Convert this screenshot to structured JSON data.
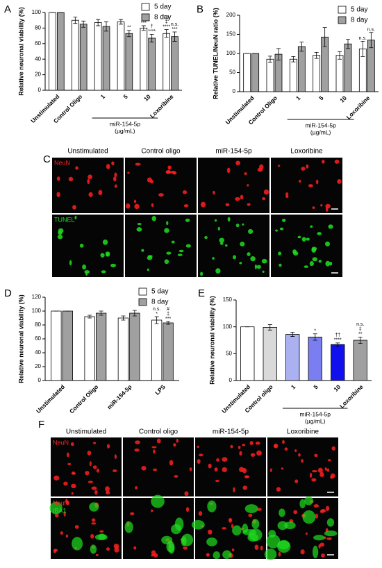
{
  "chart_data": [
    {
      "panel": "A",
      "type": "bar",
      "ylabel": "Relative neuronal viability (%)",
      "categories": [
        "Unstimulated",
        "Control Oligo",
        "1",
        "5",
        "10",
        "Loxoribine"
      ],
      "series": [
        {
          "name": "5 day",
          "color": "#ffffff",
          "values": [
            100,
            90,
            87,
            88,
            80,
            73
          ],
          "errors": [
            0,
            4,
            4,
            3,
            3,
            5
          ],
          "annotations": [
            null,
            null,
            null,
            null,
            [
              "***"
            ],
            [
              "n.s.",
              "‡",
              "****"
            ]
          ]
        },
        {
          "name": "8 day",
          "color": "#a0a0a0",
          "values": [
            100,
            85,
            82,
            73,
            67,
            69
          ],
          "errors": [
            0,
            4,
            6,
            4,
            5,
            6
          ],
          "annotations": [
            null,
            null,
            null,
            [
              "**"
            ],
            [
              "†",
              "****"
            ],
            [
              "n.s.",
              "***"
            ]
          ]
        }
      ],
      "ylim": [
        0,
        100
      ],
      "yticks": [
        0,
        20,
        40,
        60,
        80,
        100
      ],
      "legend": "upper right",
      "group_label": "miR-154-5p",
      "group_unit": "(µg/mL)"
    },
    {
      "panel": "B",
      "type": "bar",
      "ylabel": "Relative TUNEL/NeuN ratio (%)",
      "categories": [
        "Unstimulated",
        "Control Oligo",
        "1",
        "5",
        "10",
        "Loxoribine"
      ],
      "series": [
        {
          "name": "5 day",
          "color": "#ffffff",
          "values": [
            100,
            85,
            85,
            95,
            95,
            112
          ],
          "errors": [
            0,
            8,
            7,
            8,
            10,
            20
          ],
          "annotations": [
            null,
            null,
            null,
            null,
            null,
            [
              "n.s."
            ]
          ]
        },
        {
          "name": "8 day",
          "color": "#a0a0a0",
          "values": [
            100,
            98,
            118,
            143,
            125,
            135
          ],
          "errors": [
            0,
            15,
            12,
            25,
            12,
            20
          ],
          "annotations": [
            null,
            null,
            null,
            null,
            null,
            [
              "n.s."
            ]
          ]
        }
      ],
      "ylim": [
        0,
        200
      ],
      "yticks": [
        0,
        50,
        100,
        150,
        200
      ],
      "legend": "upper right",
      "group_label": "miR-154-5p",
      "group_unit": "(µg/mL)"
    },
    {
      "panel": "D",
      "type": "bar",
      "ylabel": "Relative neuronal viability (%)",
      "categories": [
        "Unstimulated",
        "Control Oligo",
        "miR-154-5p",
        "LPS"
      ],
      "series": [
        {
          "name": "5 day",
          "color": "#ffffff",
          "values": [
            100,
            92,
            90,
            87
          ],
          "errors": [
            0,
            2,
            3,
            5
          ],
          "annotations": [
            null,
            null,
            null,
            [
              "n.s.",
              "*"
            ]
          ]
        },
        {
          "name": "8 day",
          "color": "#a0a0a0",
          "values": [
            100,
            97,
            97,
            83
          ],
          "errors": [
            0,
            3,
            4,
            2
          ],
          "annotations": [
            null,
            null,
            null,
            [
              "#",
              "‡",
              "***"
            ]
          ]
        }
      ],
      "ylim": [
        0,
        120
      ],
      "yticks": [
        0,
        20,
        40,
        60,
        80,
        100,
        120
      ],
      "legend": "upper right"
    },
    {
      "panel": "E",
      "type": "bar",
      "ylabel": "Relative neuronal viability (%)",
      "categories": [
        "Unstimulated",
        "Control oligo",
        "1",
        "5",
        "10",
        "Loxoribine"
      ],
      "series": [
        {
          "colors": [
            "#ffffff",
            "#d9d9d9",
            "#aab0f0",
            "#7a7ef0",
            "#1010ee",
            "#a0a0a0"
          ],
          "values": [
            100,
            99,
            86,
            81,
            67,
            75
          ],
          "errors": [
            0,
            5,
            4,
            6,
            3,
            6
          ],
          "annotations": [
            null,
            null,
            null,
            [
              "*"
            ],
            [
              "††",
              "****"
            ],
            [
              "n.s.",
              "‡",
              "**"
            ]
          ]
        }
      ],
      "ylim": [
        0,
        150
      ],
      "yticks": [
        0,
        50,
        100,
        150
      ],
      "group_label": "miR-154-5p",
      "group_unit": "(µg/mL)"
    }
  ],
  "micrographs": [
    {
      "panel": "C",
      "columns": [
        "Unstimulated",
        "Control oligo",
        "miR-154-5p",
        "Loxoribine"
      ],
      "rows": [
        [
          {
            "text": "NeuN",
            "color": "#ff2020"
          }
        ],
        [
          {
            "text": "TUNEL",
            "color": "#20e020"
          }
        ]
      ]
    },
    {
      "panel": "F",
      "columns": [
        "Unstimulated",
        "Control oligo",
        "miR-154-5p",
        "Loxoribine"
      ],
      "rows": [
        [
          {
            "text": "NeuN",
            "color": "#ff2020"
          }
        ],
        [
          {
            "text": "NeuN",
            "color": "#ff2020"
          },
          {
            "text": "IBA1",
            "color": "#20e020"
          }
        ]
      ]
    }
  ]
}
